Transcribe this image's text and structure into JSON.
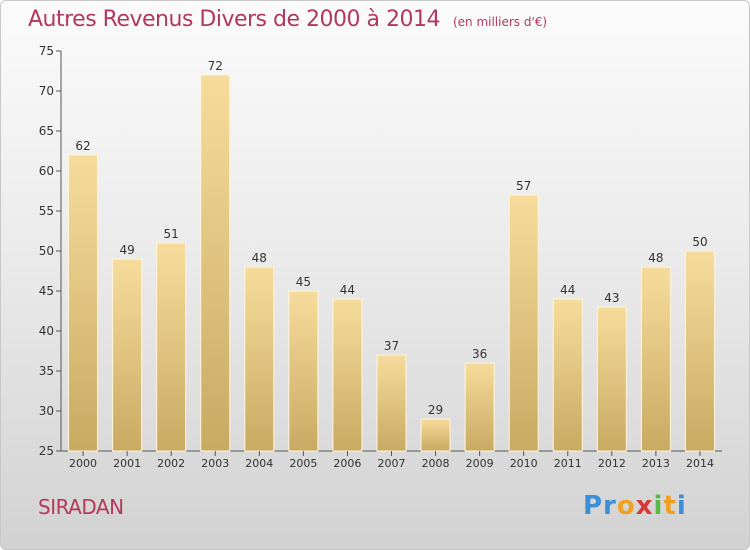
{
  "title": "Autres Revenus Divers de 2000 à 2014",
  "unit": "(en milliers d'€)",
  "place": "SIRADAN",
  "brand": "Proxiti",
  "colors": {
    "title": "#b3395c",
    "bar_light": "#f6dc9c",
    "bar_dark": "#c8aa62",
    "axis": "#555555"
  },
  "chart_data": {
    "type": "bar",
    "categories": [
      "2000",
      "2001",
      "2002",
      "2003",
      "2004",
      "2005",
      "2006",
      "2007",
      "2008",
      "2009",
      "2010",
      "2011",
      "2012",
      "2013",
      "2014"
    ],
    "values": [
      62,
      49,
      51,
      72,
      48,
      45,
      44,
      37,
      29,
      36,
      57,
      44,
      43,
      48,
      50
    ],
    "ylim": [
      25,
      75
    ],
    "yticks": [
      25,
      30,
      35,
      40,
      45,
      50,
      55,
      60,
      65,
      70,
      75
    ],
    "grid": false,
    "data_labels": true
  }
}
